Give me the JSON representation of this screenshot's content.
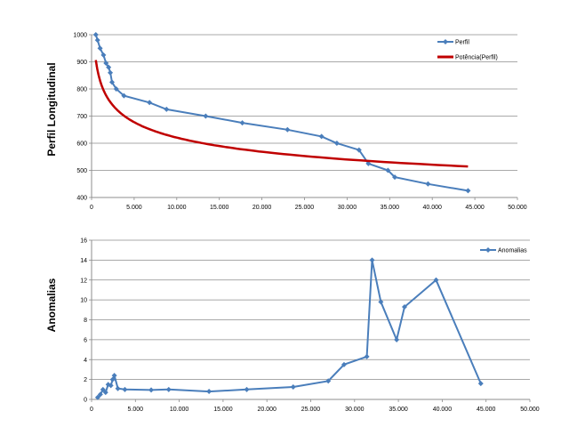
{
  "chart_data": [
    {
      "type": "line",
      "ylabel": "Perfil Longitudinal",
      "xlabel": "",
      "xlim": [
        0,
        50000
      ],
      "ylim": [
        400,
        1000
      ],
      "x_ticks": [
        "0",
        "5.000",
        "10.000",
        "15.000",
        "20.000",
        "25.000",
        "30.000",
        "35.000",
        "40.000",
        "45.000",
        "50.000"
      ],
      "y_ticks": [
        "400",
        "500",
        "600",
        "700",
        "800",
        "900",
        "1000"
      ],
      "grid": true,
      "legend": "top-right",
      "series": [
        {
          "name": "Perfil",
          "color": "#4a7ebb",
          "marker": "diamond",
          "points": [
            [
              500,
              1000
            ],
            [
              700,
              980
            ],
            [
              1000,
              950
            ],
            [
              1400,
              925
            ],
            [
              1700,
              895
            ],
            [
              2000,
              880
            ],
            [
              2200,
              860
            ],
            [
              2400,
              825
            ],
            [
              2900,
              800
            ],
            [
              3800,
              775
            ],
            [
              6800,
              750
            ],
            [
              8800,
              725
            ],
            [
              13400,
              700
            ],
            [
              17700,
              675
            ],
            [
              23000,
              650
            ],
            [
              27000,
              625
            ],
            [
              28800,
              600
            ],
            [
              31400,
              575
            ],
            [
              32500,
              525
            ],
            [
              34800,
              500
            ],
            [
              35600,
              475
            ],
            [
              39500,
              450
            ],
            [
              44200,
              425
            ]
          ]
        },
        {
          "name": "Potência(Perfil)",
          "color": "#c00000",
          "marker": "none",
          "fit": "power",
          "fit_params": {
            "a": 1990,
            "b": -0.1265
          },
          "x_range": [
            500,
            44200
          ]
        }
      ]
    },
    {
      "type": "line",
      "ylabel": "Anomalias",
      "xlabel": "",
      "xlim": [
        0,
        50000
      ],
      "ylim": [
        0,
        16
      ],
      "x_ticks": [
        "0",
        "5.000",
        "10.000",
        "15.000",
        "20.000",
        "25.000",
        "30.000",
        "35.000",
        "40.000",
        "45.000",
        "50.000"
      ],
      "y_ticks": [
        "0",
        "2",
        "4",
        "6",
        "8",
        "10",
        "12",
        "14",
        "16"
      ],
      "grid": true,
      "legend": "top-right",
      "series": [
        {
          "name": "Anomalias",
          "color": "#4a7ebb",
          "marker": "diamond",
          "points": [
            [
              700,
              0.2
            ],
            [
              1000,
              0.5
            ],
            [
              1300,
              1.0
            ],
            [
              1600,
              0.7
            ],
            [
              1900,
              1.5
            ],
            [
              2200,
              1.4
            ],
            [
              2400,
              2.0
            ],
            [
              2600,
              2.4
            ],
            [
              3000,
              1.1
            ],
            [
              3800,
              1.0
            ],
            [
              6800,
              0.95
            ],
            [
              8800,
              1.0
            ],
            [
              13400,
              0.8
            ],
            [
              17700,
              1.0
            ],
            [
              23000,
              1.25
            ],
            [
              27000,
              1.85
            ],
            [
              28800,
              3.5
            ],
            [
              31400,
              4.3
            ],
            [
              32000,
              14.0
            ],
            [
              33000,
              9.8
            ],
            [
              34800,
              6.0
            ],
            [
              35700,
              9.3
            ],
            [
              39300,
              12.0
            ],
            [
              44400,
              1.6
            ]
          ]
        }
      ]
    }
  ]
}
